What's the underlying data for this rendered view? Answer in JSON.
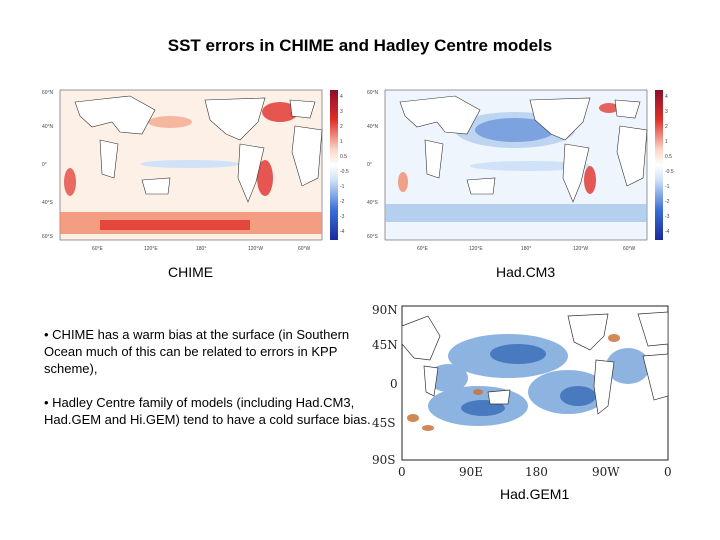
{
  "title": "SST errors in CHIME and Hadley Centre models",
  "panels": {
    "chime": {
      "caption": "CHIME",
      "lat_labels": [
        "60°N",
        "40°N",
        "0°",
        "40°S",
        "60°S"
      ],
      "lon_labels": [
        "60°E",
        "120°E",
        "180°",
        "120°W",
        "60°W"
      ],
      "colorbar_ticks": [
        "4",
        "3",
        "2",
        "1",
        "0.5",
        "-0.5",
        "-1",
        "-2",
        "-3",
        "-4"
      ]
    },
    "hadcm3": {
      "caption": "Had.CM3",
      "lat_labels": [
        "60°N",
        "40°N",
        "0°",
        "40°S",
        "60°S"
      ],
      "lon_labels": [
        "60°E",
        "120°E",
        "180°",
        "120°W",
        "60°W"
      ],
      "colorbar_ticks": [
        "4",
        "3",
        "2",
        "1",
        "0.5",
        "-0.5",
        "-1",
        "-2",
        "-3",
        "-4"
      ]
    },
    "hadgem1": {
      "caption": "Had.GEM1",
      "lat_labels": [
        "90N",
        "45N",
        "0",
        "45S",
        "90S"
      ],
      "lon_labels": [
        "0",
        "90E",
        "180",
        "90W",
        "0"
      ]
    }
  },
  "bullets": [
    "•  CHIME has a warm bias at the surface (in Southern Ocean much of this can be related to errors in KPP scheme),",
    "• Hadley Centre family of models (including Had.CM3, Had.GEM and Hi.GEM) tend to have a cold surface bias."
  ],
  "colors": {
    "warm": "#e0302a",
    "warm_light": "#f6b7a0",
    "cold": "#2e5fc8",
    "cold_light": "#9cc0ea",
    "land": "#ffffff"
  }
}
